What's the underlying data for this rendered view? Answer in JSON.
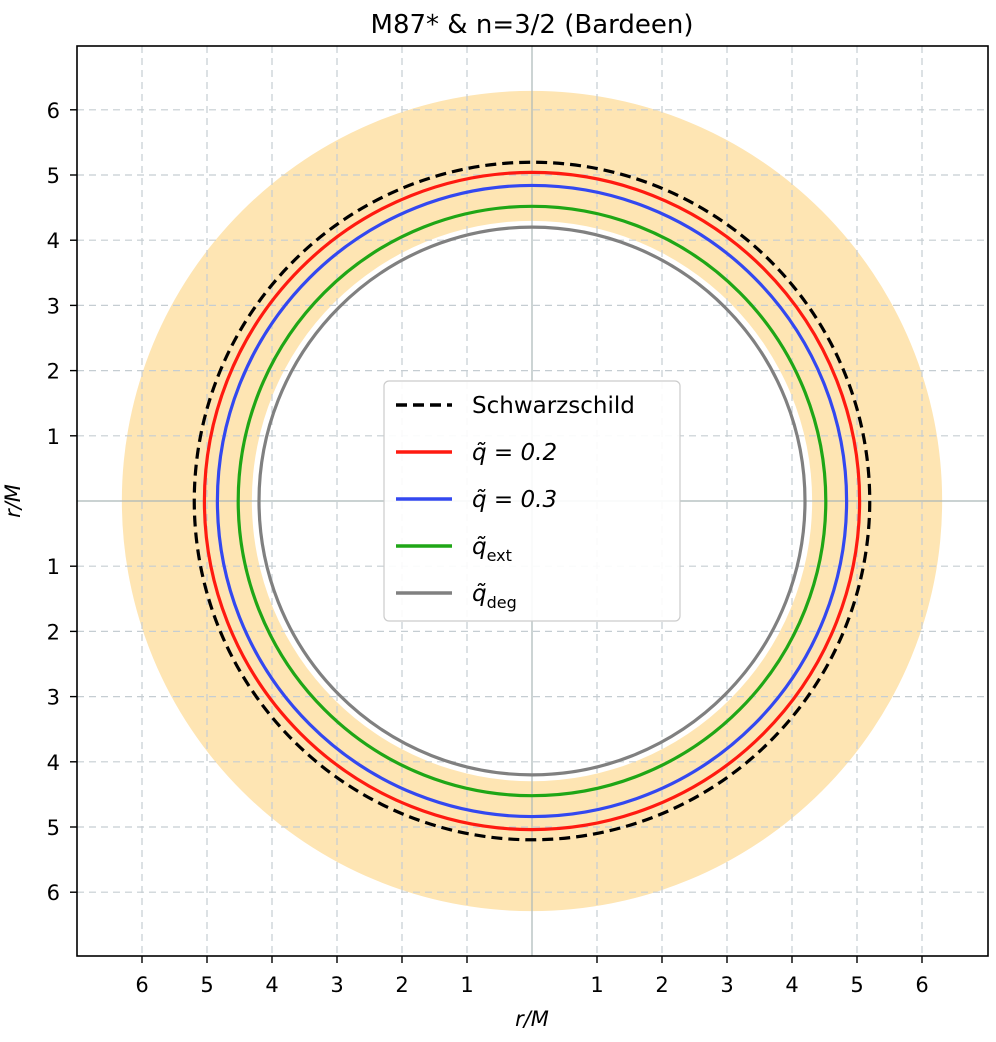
{
  "chart_data": {
    "type": "line",
    "title": "M87* & n=3/2 (Bardeen)",
    "xlabel": "r/M",
    "ylabel": "r/M",
    "xlim": [
      -7.5,
      7.5
    ],
    "ylim": [
      -7.0,
      7.0
    ],
    "grid": true,
    "legend_placement": "center",
    "xticks": [
      -6,
      -5,
      -4,
      -3,
      -2,
      -1,
      1,
      2,
      3,
      4,
      5,
      6
    ],
    "xtick_labels": [
      "6",
      "5",
      "4",
      "3",
      "2",
      "1",
      "1",
      "2",
      "3",
      "4",
      "5",
      "6"
    ],
    "yticks": [
      6,
      5,
      4,
      3,
      2,
      1,
      -1,
      -2,
      -3,
      -4,
      -5,
      -6
    ],
    "ytick_labels": [
      "6",
      "5",
      "4",
      "3",
      "2",
      "1",
      "1",
      "2",
      "3",
      "4",
      "5",
      "6"
    ],
    "band": {
      "inner_radius": 4.31,
      "outer_radius": 6.31,
      "color": "#fee5b3"
    },
    "series": [
      {
        "name": "Schwarzschild",
        "radius": 5.196,
        "color": "#000000",
        "dashed": true
      },
      {
        "name": "q̃ = 0.2",
        "radius": 5.04,
        "color": "#ff1a10",
        "dashed": false
      },
      {
        "name": "q̃ = 0.3",
        "radius": 4.84,
        "color": "#3348f0",
        "dashed": false
      },
      {
        "name": "q̃ext",
        "radius": 4.52,
        "color": "#1fa616",
        "dashed": false
      },
      {
        "name": "q̃deg",
        "radius": 4.2,
        "color": "#808080",
        "dashed": false
      }
    ]
  },
  "legend": {
    "items": [
      {
        "base": "Schwarzschild",
        "math": false,
        "sub": ""
      },
      {
        "base": "q̃ = 0.2",
        "math": true,
        "sub": ""
      },
      {
        "base": "q̃ = 0.3",
        "math": true,
        "sub": ""
      },
      {
        "base": "q̃",
        "math": true,
        "sub": "ext"
      },
      {
        "base": "q̃",
        "math": true,
        "sub": "deg"
      }
    ]
  }
}
